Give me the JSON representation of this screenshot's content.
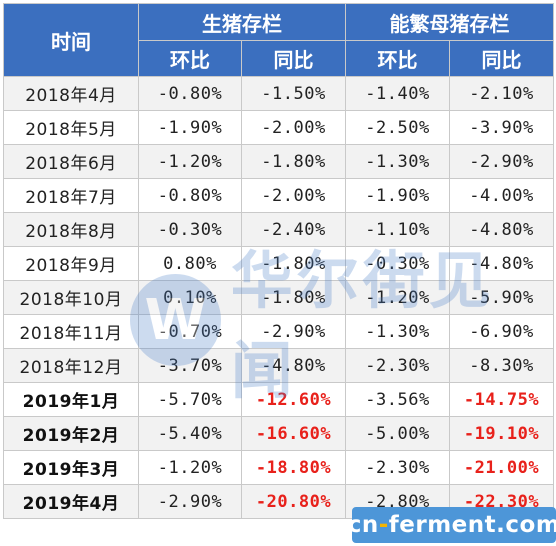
{
  "header": {
    "time": "时间",
    "group1": "生猪存栏",
    "group2": "能繁母猪存栏",
    "mom": "环比",
    "yoy": "同比"
  },
  "rows": [
    {
      "month": "2018年4月",
      "live_mom": "-0.80%",
      "live_yoy": "-1.50%",
      "sow_mom": "-1.40%",
      "sow_yoy": "-2.10%"
    },
    {
      "month": "2018年5月",
      "live_mom": "-1.90%",
      "live_yoy": "-2.00%",
      "sow_mom": "-2.50%",
      "sow_yoy": "-3.90%"
    },
    {
      "month": "2018年6月",
      "live_mom": "-1.20%",
      "live_yoy": "-1.80%",
      "sow_mom": "-1.30%",
      "sow_yoy": "-2.90%"
    },
    {
      "month": "2018年7月",
      "live_mom": "-0.80%",
      "live_yoy": "-2.00%",
      "sow_mom": "-1.90%",
      "sow_yoy": "-4.00%"
    },
    {
      "month": "2018年8月",
      "live_mom": "-0.30%",
      "live_yoy": "-2.40%",
      "sow_mom": "-1.10%",
      "sow_yoy": "-4.80%"
    },
    {
      "month": "2018年9月",
      "live_mom": "0.80%",
      "live_yoy": "-1.80%",
      "sow_mom": "-0.30%",
      "sow_yoy": "-4.80%"
    },
    {
      "month": "2018年10月",
      "live_mom": "0.10%",
      "live_yoy": "-1.80%",
      "sow_mom": "-1.20%",
      "sow_yoy": "-5.90%"
    },
    {
      "month": "2018年11月",
      "live_mom": "-0.70%",
      "live_yoy": "-2.90%",
      "sow_mom": "-1.30%",
      "sow_yoy": "-6.90%"
    },
    {
      "month": "2018年12月",
      "live_mom": "-3.70%",
      "live_yoy": "-4.80%",
      "sow_mom": "-2.30%",
      "sow_yoy": "-8.30%"
    },
    {
      "month": "2019年1月",
      "live_mom": "-5.70%",
      "live_yoy": "-12.60%",
      "sow_mom": "-3.56%",
      "sow_yoy": "-14.75%"
    },
    {
      "month": "2019年2月",
      "live_mom": "-5.40%",
      "live_yoy": "-16.60%",
      "sow_mom": "-5.00%",
      "sow_yoy": "-19.10%"
    },
    {
      "month": "2019年3月",
      "live_mom": "-1.20%",
      "live_yoy": "-18.80%",
      "sow_mom": "-2.30%",
      "sow_yoy": "-21.00%"
    },
    {
      "month": "2019年4月",
      "live_mom": "-2.90%",
      "live_yoy": "-20.80%",
      "sow_mom": "-2.80%",
      "sow_yoy": "-22.30%"
    }
  ],
  "highlight": {
    "bold_month_from_row": 9,
    "red_color": "#e8211b",
    "header_color": "#3b6fbf"
  },
  "watermark": {
    "text": "华尔街见闻",
    "icon": "W"
  },
  "logo": {
    "text_a": "cn",
    "dot": "-",
    "text_b": "ferment",
    "text_c": ".com"
  }
}
